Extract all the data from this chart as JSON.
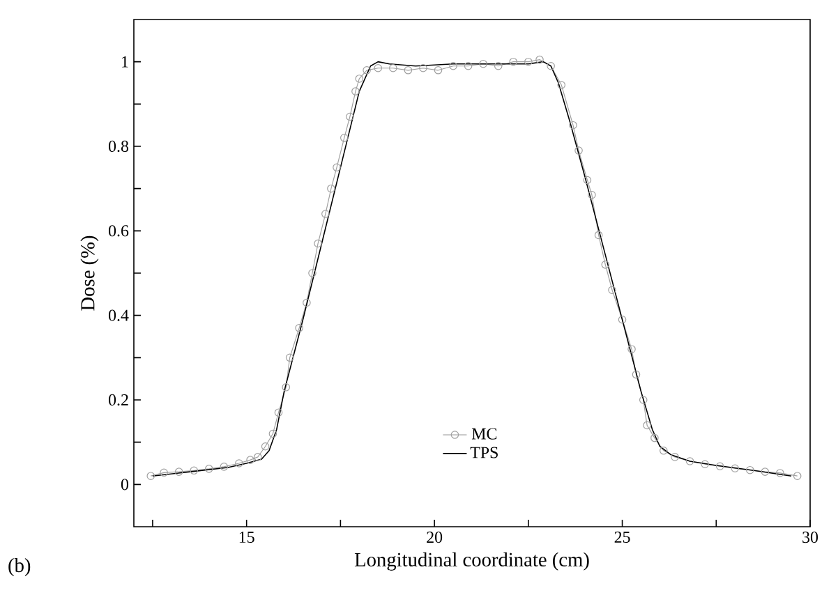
{
  "chart_data": {
    "type": "line",
    "xlabel": "Longitudinal coordinate (cm)",
    "ylabel": "Dose (%)",
    "xlim": [
      12,
      30
    ],
    "ylim": [
      -0.1,
      1.1
    ],
    "xticks": [
      {
        "value": 12.5,
        "label": null
      },
      15,
      {
        "value": 17.5,
        "label": null
      },
      20,
      {
        "value": 22.5,
        "label": null
      },
      25,
      {
        "value": 27.5,
        "label": null
      },
      30
    ],
    "yticks": [
      0,
      {
        "value": 0.1,
        "label": null
      },
      0.2,
      {
        "value": 0.3,
        "label": null
      },
      0.4,
      {
        "value": 0.5,
        "label": null
      },
      0.6,
      {
        "value": 0.7,
        "label": null
      },
      0.8,
      {
        "value": 0.9,
        "label": null
      },
      1
    ],
    "grid": false,
    "legend": "bottom",
    "annotations": [
      "(b)"
    ],
    "series": [
      {
        "name": "MC",
        "color": "#a0a0a0",
        "marker": "circle",
        "line_style": "solid",
        "x": [
          12.45,
          12.8,
          13.2,
          13.6,
          14.0,
          14.4,
          14.8,
          15.1,
          15.3,
          15.5,
          15.7,
          15.85,
          16.05,
          16.15,
          16.4,
          16.6,
          16.75,
          16.9,
          17.1,
          17.25,
          17.4,
          17.6,
          17.75,
          17.9,
          18.0,
          18.2,
          18.5,
          18.9,
          19.3,
          19.7,
          20.1,
          20.5,
          20.9,
          21.3,
          21.7,
          22.1,
          22.5,
          22.8,
          23.1,
          23.38,
          23.69,
          23.84,
          24.07,
          24.19,
          24.37,
          24.55,
          24.73,
          25.0,
          25.25,
          25.37,
          25.56,
          25.66,
          25.86,
          26.1,
          26.4,
          26.8,
          27.2,
          27.6,
          28.0,
          28.4,
          28.8,
          29.2,
          29.66
        ],
        "values": [
          0.02,
          0.028,
          0.03,
          0.033,
          0.037,
          0.042,
          0.05,
          0.058,
          0.065,
          0.09,
          0.12,
          0.17,
          0.23,
          0.3,
          0.37,
          0.43,
          0.5,
          0.57,
          0.64,
          0.7,
          0.75,
          0.82,
          0.87,
          0.93,
          0.96,
          0.98,
          0.985,
          0.985,
          0.98,
          0.985,
          0.98,
          0.99,
          0.99,
          0.995,
          0.99,
          1.0,
          1.0,
          1.005,
          0.99,
          0.945,
          0.85,
          0.79,
          0.72,
          0.685,
          0.59,
          0.52,
          0.46,
          0.39,
          0.32,
          0.26,
          0.2,
          0.14,
          0.11,
          0.08,
          0.065,
          0.055,
          0.048,
          0.043,
          0.038,
          0.034,
          0.03,
          0.027,
          0.02
        ]
      },
      {
        "name": "TPS",
        "color": "#000000",
        "marker": "none",
        "line_style": "solid",
        "x": [
          12.5,
          13.5,
          14.5,
          15.0,
          15.4,
          15.6,
          15.8,
          16.0,
          16.5,
          17.0,
          17.5,
          18.0,
          18.3,
          18.5,
          18.8,
          19.5,
          20.5,
          21.5,
          22.5,
          22.9,
          23.1,
          23.3,
          23.6,
          24.0,
          24.5,
          25.0,
          25.5,
          25.8,
          26.0,
          26.3,
          26.8,
          27.5,
          28.5,
          29.5
        ],
        "values": [
          0.02,
          0.03,
          0.04,
          0.05,
          0.06,
          0.08,
          0.13,
          0.22,
          0.39,
          0.57,
          0.75,
          0.93,
          0.99,
          1.0,
          0.995,
          0.99,
          0.995,
          0.995,
          0.995,
          1.0,
          0.99,
          0.95,
          0.86,
          0.73,
          0.56,
          0.39,
          0.22,
          0.13,
          0.09,
          0.07,
          0.055,
          0.045,
          0.033,
          0.02
        ]
      }
    ]
  }
}
